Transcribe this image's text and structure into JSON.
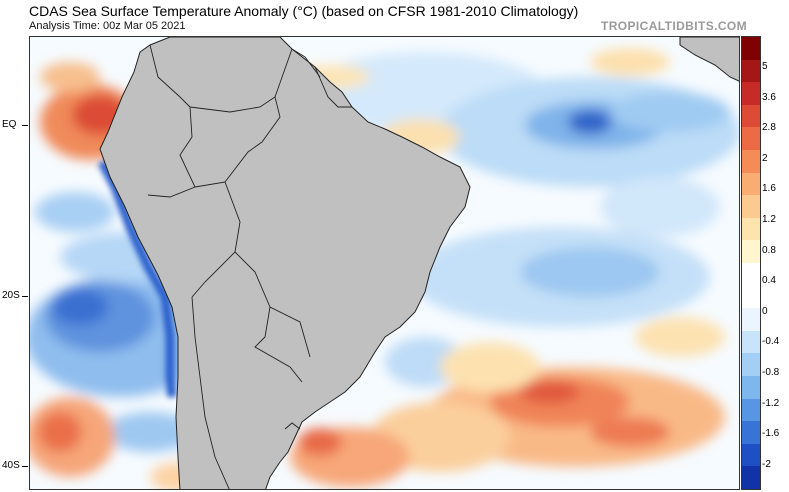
{
  "header": {
    "title": "CDAS Sea Surface Temperature Anomaly (°C) (based on CFSR 1981-2010 Climatology)",
    "subtitle": "Analysis Time: 00z Mar 05 2021",
    "brand": "TROPICALTIDBITS.COM"
  },
  "map": {
    "region": "South America / South Atlantic",
    "latitude_labels": [
      "EQ",
      "20S",
      "40S"
    ],
    "land_color": "#c0c0c0",
    "border_color": "#222222"
  },
  "colorbar": {
    "labels": [
      "5",
      "3.6",
      "2.8",
      "2",
      "1.6",
      "1.2",
      "0.8",
      "0.4",
      "0",
      "-0.4",
      "-0.8",
      "-1.2",
      "-1.6",
      "-2"
    ],
    "colors": [
      "#7f0000",
      "#a51616",
      "#c62b27",
      "#dd4a36",
      "#ec6a44",
      "#f58c57",
      "#f9ad72",
      "#fcca90",
      "#fde4ae",
      "#fff6cf",
      "#ffffff",
      "#ffffff",
      "#eaf5ff",
      "#c8e4fb",
      "#a3cff5",
      "#7db7ee",
      "#5896e4",
      "#3873d6",
      "#1e4fc4",
      "#1233a8"
    ]
  }
}
